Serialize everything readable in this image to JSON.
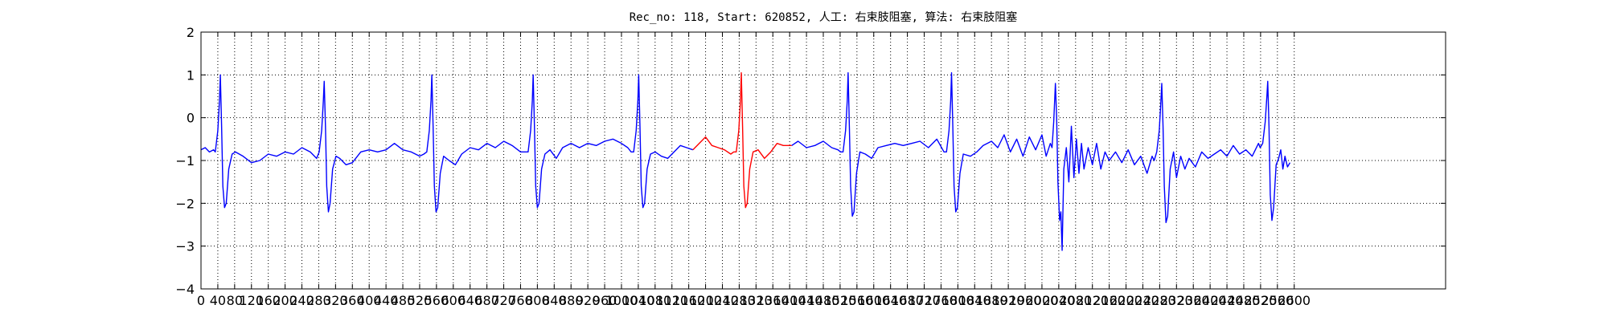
{
  "chart_data": {
    "type": "line",
    "title": "Rec_no: 118, Start: 620852, 人工: 右束肢阻塞, 算法: 右束肢阻塞",
    "xlim": [
      0,
      2960
    ],
    "ylim": [
      -4,
      2
    ],
    "xticks": [
      0,
      40,
      80,
      120,
      160,
      200,
      240,
      280,
      320,
      360,
      400,
      440,
      480,
      520,
      560,
      600,
      640,
      680,
      720,
      760,
      800,
      840,
      880,
      920,
      960,
      1000,
      1040,
      1080,
      1120,
      1160,
      1200,
      1240,
      1280,
      1320,
      1360,
      1400,
      1440,
      1480,
      1520,
      1560,
      1600,
      1640,
      1680,
      1720,
      1760,
      1800,
      1840,
      1880,
      1920,
      1960,
      2000,
      2040,
      2080,
      2120,
      2160,
      2200,
      2240,
      2280,
      2320,
      2360,
      2400,
      2440,
      2480,
      2520,
      2560,
      2600
    ],
    "yticks": [
      {
        "value": -4,
        "label": "−4"
      },
      {
        "value": -3,
        "label": "−3"
      },
      {
        "value": -2,
        "label": "−2"
      },
      {
        "value": -1,
        "label": "−1"
      },
      0,
      1,
      2
    ],
    "grid": true,
    "series": [
      {
        "color": "#0000ff",
        "x": [
          0,
          10,
          20,
          30,
          34,
          40,
          44,
          46,
          49,
          52,
          56,
          60,
          66,
          74,
          82,
          100,
          120,
          140,
          160,
          180,
          200,
          220,
          240,
          260,
          275,
          281,
          287,
          291,
          293,
          296,
          299,
          303,
          307,
          313,
          321,
          330,
          345,
          360,
          380,
          400,
          420,
          440,
          460,
          480,
          500,
          520,
          530,
          537,
          543,
          547,
          549,
          552,
          555,
          559,
          563,
          569,
          577,
          590,
          605,
          620,
          640,
          660,
          680,
          700,
          720,
          740,
          760,
          772,
          778,
          784,
          788,
          790,
          793,
          796,
          800,
          804,
          810,
          818,
          830,
          845,
          860,
          880,
          900,
          920,
          940,
          960,
          980,
          1000,
          1015,
          1023,
          1029,
          1035,
          1039,
          1041,
          1044,
          1047,
          1051,
          1055,
          1061,
          1069,
          1080,
          1095,
          1110,
          1125,
          1140,
          1155,
          1170
        ],
        "values": [
          -0.75,
          -0.7,
          -0.8,
          -0.75,
          -0.8,
          -0.3,
          0.4,
          1.0,
          -0.2,
          -1.6,
          -2.1,
          -2.0,
          -1.2,
          -0.85,
          -0.8,
          -0.9,
          -1.05,
          -1.0,
          -0.85,
          -0.9,
          -0.8,
          -0.85,
          -0.7,
          -0.8,
          -0.95,
          -0.8,
          -0.3,
          0.4,
          0.85,
          -0.2,
          -1.6,
          -2.2,
          -2.0,
          -1.2,
          -0.9,
          -0.95,
          -1.1,
          -1.05,
          -0.8,
          -0.75,
          -0.8,
          -0.75,
          -0.6,
          -0.75,
          -0.8,
          -0.9,
          -0.85,
          -0.8,
          -0.3,
          0.4,
          1.0,
          -0.2,
          -1.6,
          -2.2,
          -2.1,
          -1.3,
          -0.9,
          -1.0,
          -1.1,
          -0.85,
          -0.7,
          -0.75,
          -0.6,
          -0.7,
          -0.55,
          -0.65,
          -0.8,
          -0.8,
          -0.8,
          -0.3,
          0.4,
          1.0,
          -0.2,
          -1.6,
          -2.1,
          -2.0,
          -1.2,
          -0.85,
          -0.75,
          -0.95,
          -0.7,
          -0.6,
          -0.7,
          -0.6,
          -0.65,
          -0.55,
          -0.5,
          -0.6,
          -0.7,
          -0.8,
          -0.8,
          -0.3,
          0.4,
          1.0,
          -0.2,
          -1.6,
          -2.1,
          -2.0,
          -1.2,
          -0.85,
          -0.8,
          -0.9,
          -0.95,
          -0.8,
          -0.65,
          -0.7,
          -0.75
        ]
      },
      {
        "color": "#ff0000",
        "x": [
          1170,
          1185,
          1200,
          1215,
          1230,
          1245,
          1260,
          1267,
          1273,
          1279,
          1283,
          1285,
          1288,
          1291,
          1295,
          1299,
          1305,
          1313,
          1325,
          1340,
          1355,
          1370,
          1385,
          1405
        ],
        "values": [
          -0.75,
          -0.6,
          -0.45,
          -0.65,
          -0.7,
          -0.75,
          -0.85,
          -0.8,
          -0.8,
          -0.3,
          0.4,
          1.05,
          -0.2,
          -1.6,
          -2.1,
          -2.0,
          -1.2,
          -0.8,
          -0.75,
          -0.95,
          -0.8,
          -0.6,
          -0.65,
          -0.65
        ]
      },
      {
        "color": "#0000ff",
        "x": [
          1405,
          1420,
          1440,
          1460,
          1480,
          1500,
          1515,
          1521,
          1527,
          1533,
          1537,
          1539,
          1542,
          1545,
          1549,
          1553,
          1559,
          1567,
          1580,
          1595,
          1610,
          1630,
          1650,
          1670,
          1690,
          1710,
          1730,
          1750,
          1767,
          1773,
          1779,
          1783,
          1785,
          1788,
          1791,
          1795,
          1799,
          1805,
          1813,
          1830,
          1845,
          1860,
          1880,
          1895,
          1910,
          1925,
          1940,
          1955,
          1970,
          1985,
          2000,
          2010,
          2020,
          2024,
          2028,
          2032,
          2035,
          2038,
          2042,
          2045,
          2048,
          2052,
          2058,
          2064,
          2070,
          2076,
          2082,
          2088,
          2094,
          2100,
          2110,
          2120,
          2130,
          2140,
          2150,
          2160,
          2175,
          2190,
          2205,
          2220,
          2235,
          2250,
          2262,
          2267,
          2273,
          2279,
          2283,
          2285,
          2288,
          2291,
          2295,
          2299,
          2305,
          2313,
          2320,
          2330,
          2340,
          2350,
          2365,
          2380,
          2395,
          2410,
          2425,
          2440,
          2455,
          2470,
          2485,
          2500,
          2515,
          2519,
          2525,
          2531,
          2535,
          2537,
          2540,
          2543,
          2547,
          2551,
          2557,
          2563,
          2568,
          2573,
          2578,
          2584,
          2590
        ],
        "values": [
          -0.65,
          -0.55,
          -0.7,
          -0.65,
          -0.55,
          -0.7,
          -0.75,
          -0.8,
          -0.8,
          -0.3,
          0.4,
          1.05,
          -0.2,
          -1.6,
          -2.3,
          -2.2,
          -1.3,
          -0.8,
          -0.85,
          -0.95,
          -0.7,
          -0.65,
          -0.6,
          -0.65,
          -0.6,
          -0.55,
          -0.7,
          -0.5,
          -0.8,
          -0.8,
          -0.3,
          0.4,
          1.05,
          -0.2,
          -1.6,
          -2.2,
          -2.1,
          -1.3,
          -0.85,
          -0.9,
          -0.8,
          -0.65,
          -0.55,
          -0.7,
          -0.4,
          -0.8,
          -0.5,
          -0.9,
          -0.45,
          -0.75,
          -0.4,
          -0.9,
          -0.6,
          -0.7,
          -0.1,
          0.8,
          0.0,
          -1.5,
          -2.4,
          -2.2,
          -3.1,
          -1.2,
          -0.7,
          -1.5,
          -0.2,
          -1.4,
          -0.5,
          -1.3,
          -0.6,
          -1.2,
          -0.7,
          -1.1,
          -0.6,
          -1.2,
          -0.8,
          -1.0,
          -0.8,
          -1.05,
          -0.75,
          -1.1,
          -0.9,
          -1.3,
          -0.9,
          -1.0,
          -0.8,
          -0.3,
          0.4,
          0.8,
          -0.2,
          -1.6,
          -2.45,
          -2.3,
          -1.2,
          -0.8,
          -1.4,
          -0.9,
          -1.2,
          -0.95,
          -1.15,
          -0.8,
          -0.95,
          -0.85,
          -0.75,
          -0.9,
          -0.65,
          -0.85,
          -0.75,
          -0.9,
          -0.6,
          -0.7,
          -0.6,
          -0.1,
          0.5,
          0.85,
          -0.2,
          -1.8,
          -2.4,
          -2.1,
          -1.1,
          -0.95,
          -0.75,
          -1.2,
          -0.9,
          -1.15,
          -1.05
        ]
      }
    ]
  }
}
